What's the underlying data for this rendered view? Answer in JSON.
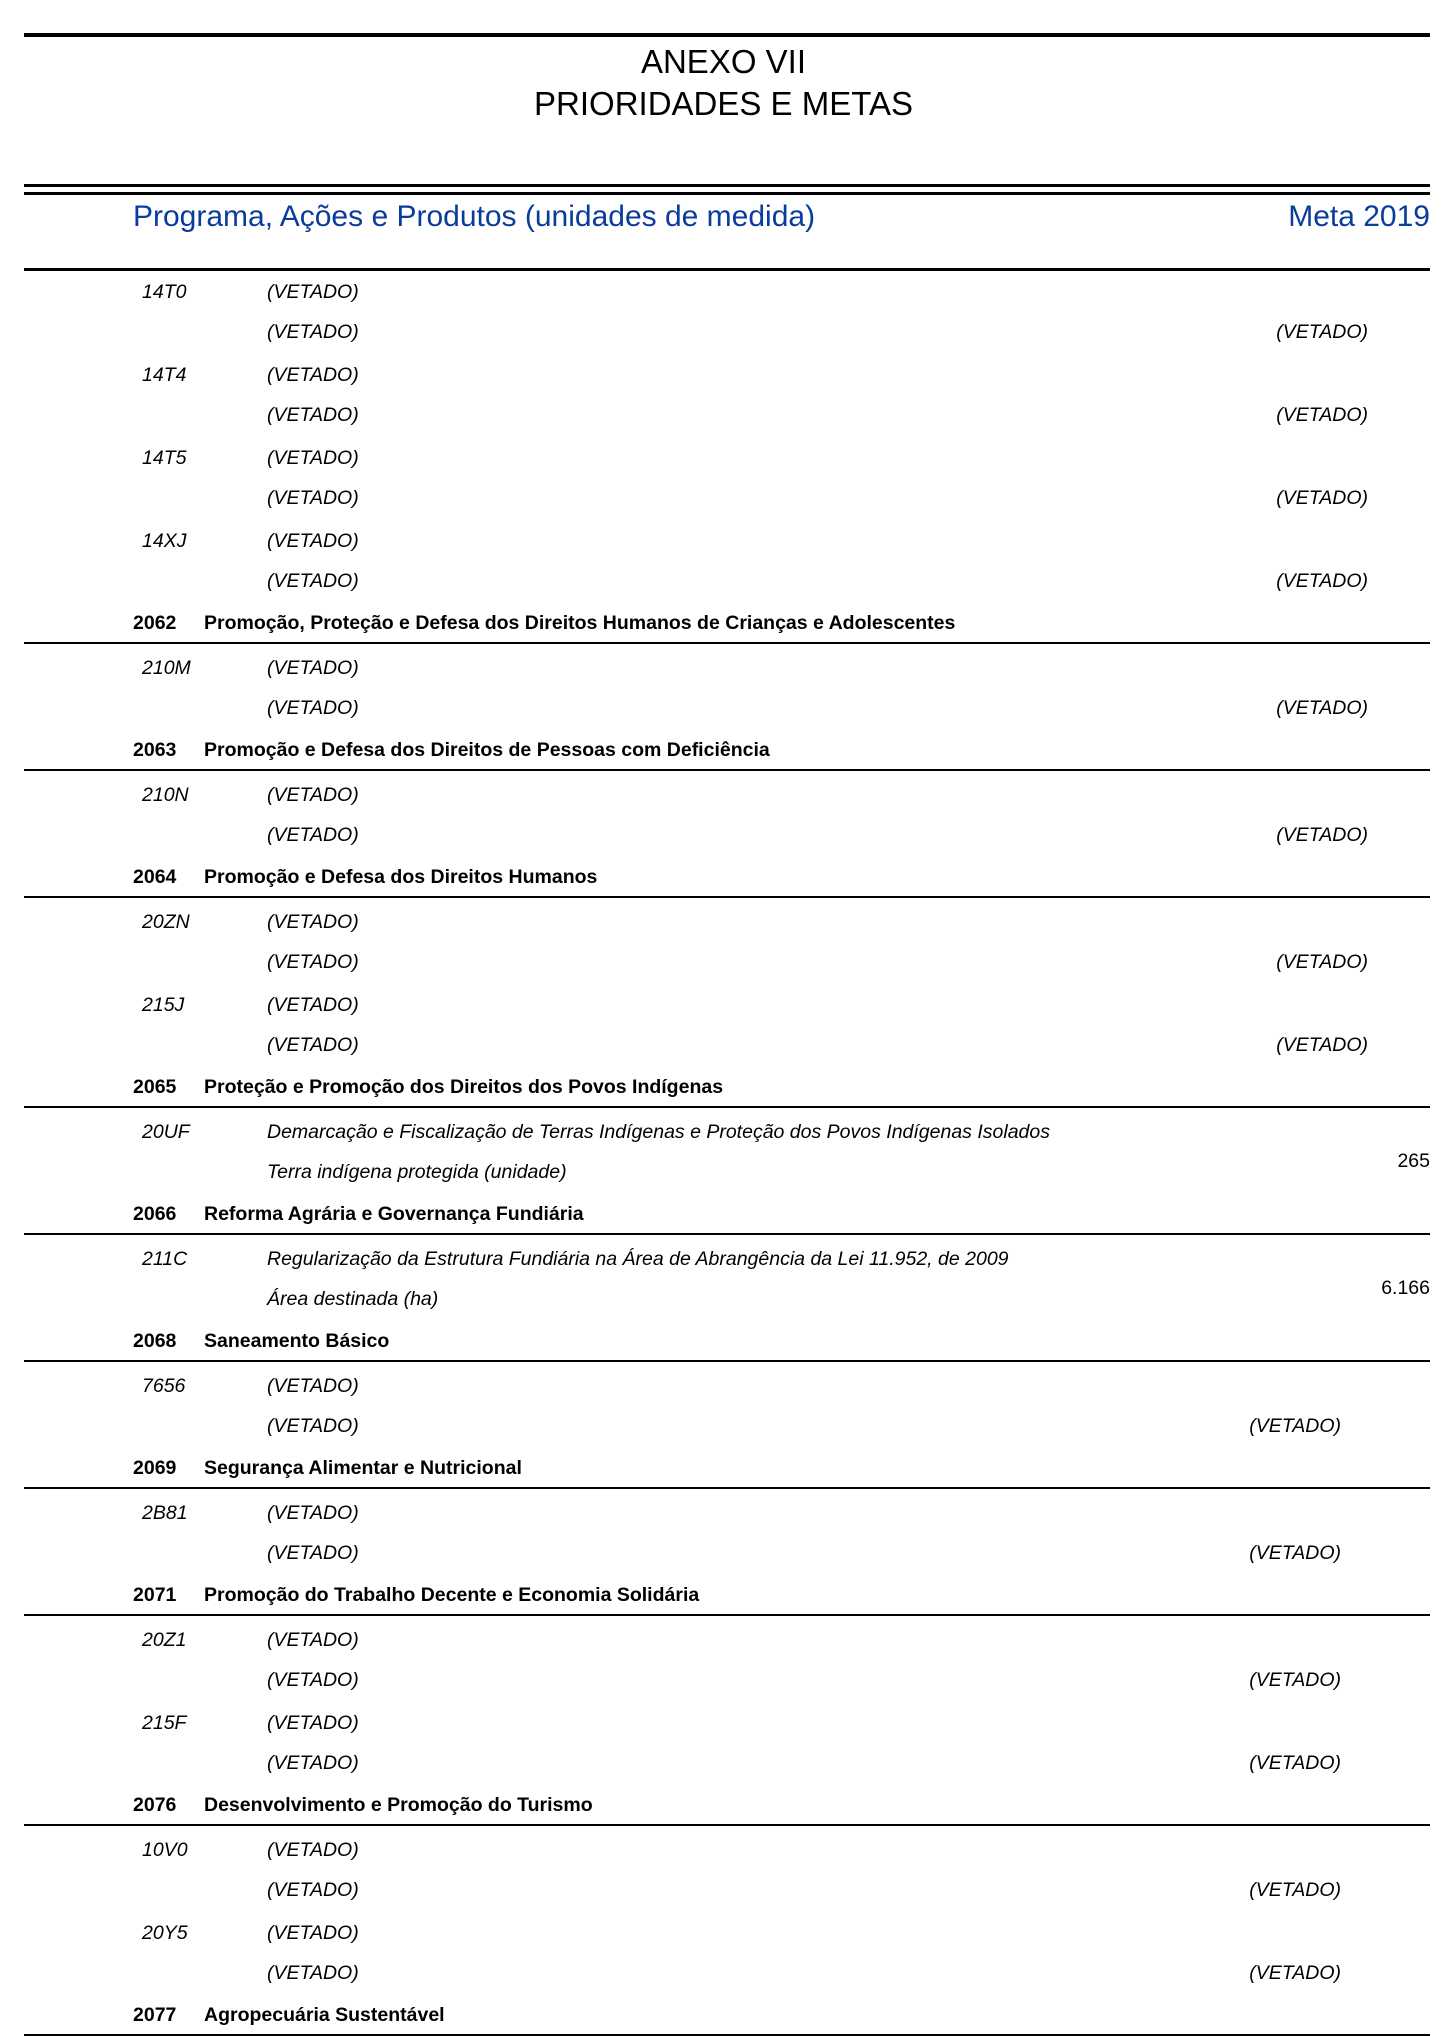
{
  "document": {
    "annex": "ANEXO VII",
    "title": "PRIORIDADES E METAS",
    "column_program": "Programa, Ações e Produtos (unidades de medida)",
    "column_meta": "Meta 2019",
    "header_color": "#0a3c9c"
  },
  "groups": [
    {
      "code": "",
      "name": "",
      "actions": [
        {
          "code": "14T0",
          "title": "(VETADO)",
          "product": "(VETADO)",
          "meta": "(VETADO)"
        },
        {
          "code": "14T4",
          "title": "(VETADO)",
          "product": "(VETADO)",
          "meta": "(VETADO)"
        },
        {
          "code": "14T5",
          "title": "(VETADO)",
          "product": "(VETADO)",
          "meta": "(VETADO)"
        },
        {
          "code": "14XJ",
          "title": "(VETADO)",
          "product": "(VETADO)",
          "meta": "(VETADO)"
        }
      ]
    },
    {
      "code": "2062",
      "name": "Promoção, Proteção e Defesa dos Direitos Humanos de Crianças e Adolescentes",
      "actions": [
        {
          "code": "210M",
          "title": "(VETADO)",
          "product": "(VETADO)",
          "meta": "(VETADO)"
        }
      ]
    },
    {
      "code": "2063",
      "name": "Promoção e Defesa dos Direitos de Pessoas com Deficiência",
      "actions": [
        {
          "code": "210N",
          "title": "(VETADO)",
          "product": "(VETADO)",
          "meta": "(VETADO)"
        }
      ]
    },
    {
      "code": "2064",
      "name": "Promoção e Defesa dos Direitos Humanos",
      "actions": [
        {
          "code": "20ZN",
          "title": "(VETADO)",
          "product": "(VETADO)",
          "meta": "(VETADO)"
        },
        {
          "code": "215J",
          "title": "(VETADO)",
          "product": "(VETADO)",
          "meta": "(VETADO)"
        }
      ]
    },
    {
      "code": "2065",
      "name": "Proteção e Promoção dos Direitos dos Povos Indígenas",
      "actions": [
        {
          "code": "20UF",
          "title": "Demarcação e Fiscalização de Terras Indígenas e Proteção dos Povos Indígenas Isolados",
          "product": "Terra indígena protegida (unidade)",
          "meta": "265"
        }
      ]
    },
    {
      "code": "2066",
      "name": "Reforma Agrária e Governança Fundiária",
      "actions": [
        {
          "code": "211C",
          "title": "Regularização da Estrutura Fundiária na Área de Abrangência da Lei 11.952, de 2009",
          "product": "Área destinada (ha)",
          "meta": "6.166"
        }
      ]
    },
    {
      "code": "2068",
      "name": "Saneamento Básico",
      "actions": [
        {
          "code": "7656",
          "title": "(VETADO)",
          "product": "(VETADO)",
          "meta": "(VETADO)"
        }
      ]
    },
    {
      "code": "2069",
      "name": "Segurança Alimentar e Nutricional",
      "actions": [
        {
          "code": "2B81",
          "title": "(VETADO)",
          "product": "(VETADO)",
          "meta": "(VETADO)"
        }
      ]
    },
    {
      "code": "2071",
      "name": "Promoção do Trabalho Decente e Economia Solidária",
      "actions": [
        {
          "code": "20Z1",
          "title": "(VETADO)",
          "product": "(VETADO)",
          "meta": "(VETADO)"
        },
        {
          "code": "215F",
          "title": "(VETADO)",
          "product": "(VETADO)",
          "meta": "(VETADO)"
        }
      ]
    },
    {
      "code": "2076",
      "name": "Desenvolvimento e Promoção do Turismo",
      "actions": [
        {
          "code": "10V0",
          "title": "(VETADO)",
          "product": "(VETADO)",
          "meta": "(VETADO)"
        },
        {
          "code": "20Y5",
          "title": "(VETADO)",
          "product": "(VETADO)",
          "meta": "(VETADO)"
        }
      ]
    },
    {
      "code": "2077",
      "name": "Agropecuária Sustentável",
      "actions": []
    }
  ]
}
